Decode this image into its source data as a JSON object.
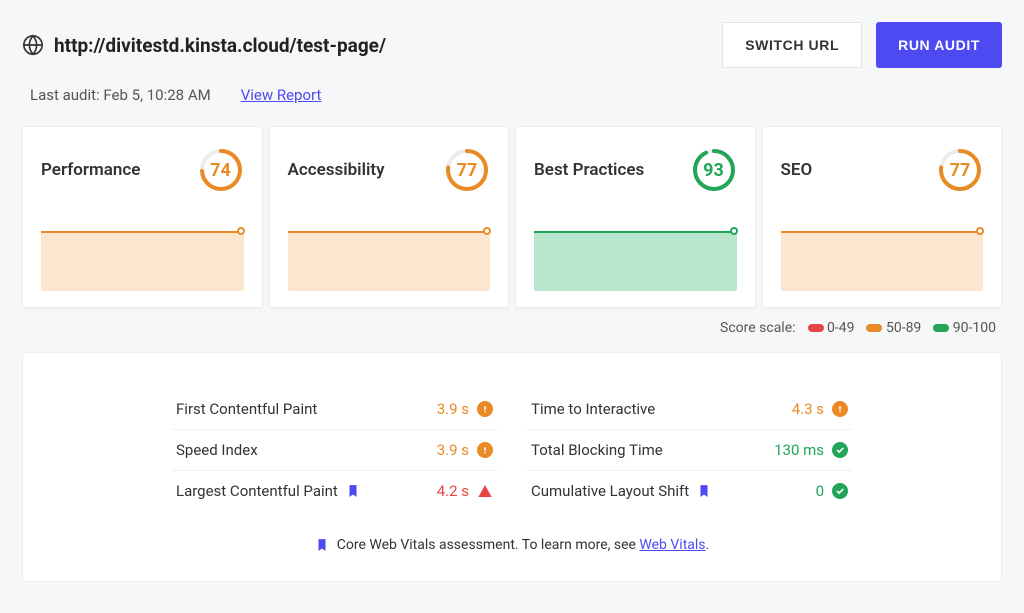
{
  "header": {
    "url": "http://divitestd.kinsta.cloud/test-page/",
    "switch_url_label": "SWITCH URL",
    "run_audit_label": "RUN AUDIT"
  },
  "subheader": {
    "last_audit": "Last audit: Feb 5, 10:28 AM",
    "view_report": "View Report"
  },
  "colors": {
    "primary": "#4d4af1",
    "orange": "#e98a24",
    "orange_fill": "#fbe7cf",
    "green": "#21a658",
    "green_fill": "#b8e6cc",
    "red": "#e64540",
    "ring_bg": "#ececec",
    "text": "#333333"
  },
  "cards": [
    {
      "title": "Performance",
      "score": 74,
      "color": "#e98a24",
      "fill": "#fbe7cf"
    },
    {
      "title": "Accessibility",
      "score": 77,
      "color": "#e98a24",
      "fill": "#fbe7cf"
    },
    {
      "title": "Best Practices",
      "score": 93,
      "color": "#21a658",
      "fill": "#b8e6cc"
    },
    {
      "title": "SEO",
      "score": 77,
      "color": "#e98a24",
      "fill": "#fbe7cf"
    }
  ],
  "scale": {
    "label": "Score scale:",
    "ranges": [
      {
        "text": "0-49",
        "color": "#e64540"
      },
      {
        "text": "50-89",
        "color": "#e98a24"
      },
      {
        "text": "90-100",
        "color": "#21a658"
      }
    ]
  },
  "metrics_left": [
    {
      "name": "First Contentful Paint",
      "value": "3.9 s",
      "value_color": "#e98a24",
      "status": "warn"
    },
    {
      "name": "Speed Index",
      "value": "3.9 s",
      "value_color": "#e98a24",
      "status": "warn"
    },
    {
      "name": "Largest Contentful Paint",
      "value": "4.2 s",
      "value_color": "#e64540",
      "status": "fail",
      "core_vital": true
    }
  ],
  "metrics_right": [
    {
      "name": "Time to Interactive",
      "value": "4.3 s",
      "value_color": "#e98a24",
      "status": "warn"
    },
    {
      "name": "Total Blocking Time",
      "value": "130 ms",
      "value_color": "#21a658",
      "status": "pass"
    },
    {
      "name": "Cumulative Layout Shift",
      "value": "0",
      "value_color": "#21a658",
      "status": "pass",
      "core_vital": true
    }
  ],
  "footer": {
    "text_before": "Core Web Vitals assessment. To learn more, see ",
    "link_text": "Web Vitals",
    "text_after": "."
  }
}
